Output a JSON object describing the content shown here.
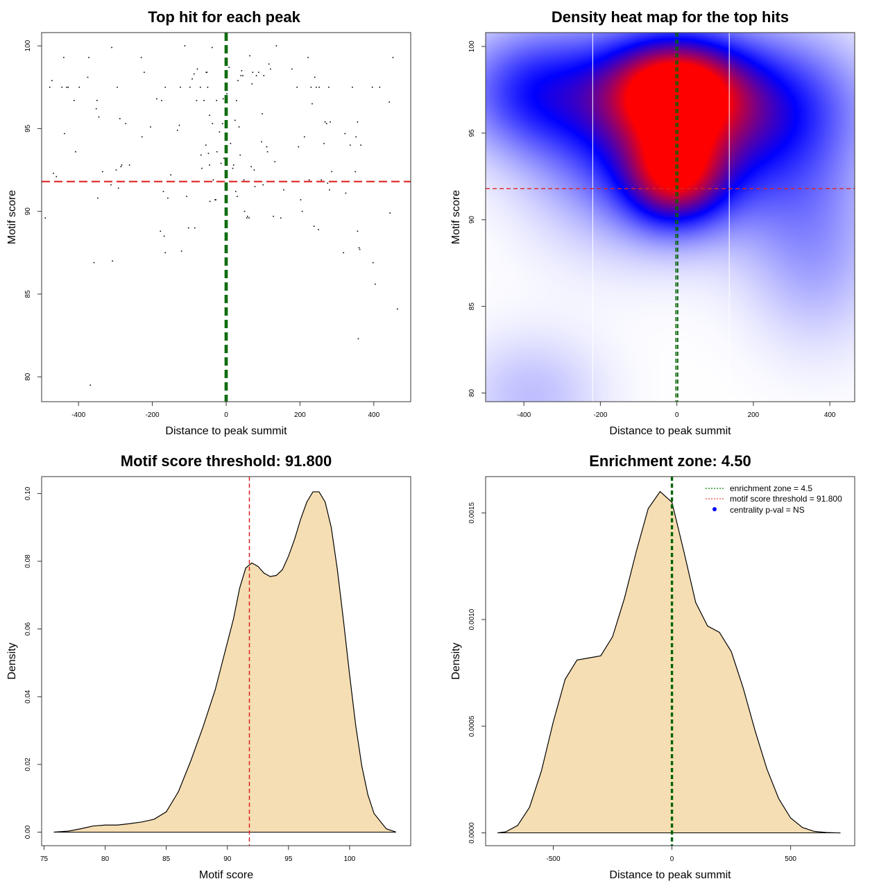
{
  "chart_data": [
    {
      "id": "scatter",
      "type": "scatter",
      "title": "Top hit for each peak",
      "xlabel": "Distance to peak summit",
      "ylabel": "Motif score",
      "xlim": [
        -500,
        500
      ],
      "ylim": [
        78.5,
        100.8
      ],
      "xticks": [
        -400,
        -200,
        0,
        200,
        400
      ],
      "yticks": [
        80,
        85,
        90,
        95,
        100
      ],
      "hline": {
        "y": 91.8,
        "color": "#dd2222"
      },
      "vlines": {
        "x": [
          -2.25,
          2.25
        ],
        "color": "#006400"
      },
      "points": [
        [
          -490,
          89.6
        ],
        [
          -478,
          97.5
        ],
        [
          -472,
          97.9
        ],
        [
          -468,
          92.3
        ],
        [
          -460,
          92.1
        ],
        [
          -445,
          97.5
        ],
        [
          -440,
          99.3
        ],
        [
          -438,
          94.7
        ],
        [
          -432,
          97.5
        ],
        [
          -428,
          97.5
        ],
        [
          -412,
          96.7
        ],
        [
          -408,
          93.6
        ],
        [
          -398,
          97.5
        ],
        [
          -375,
          98.1
        ],
        [
          -372,
          99.3
        ],
        [
          -358,
          86.9
        ],
        [
          -352,
          96.2
        ],
        [
          -350,
          96.7
        ],
        [
          -348,
          90.8
        ],
        [
          -345,
          95.7
        ],
        [
          -335,
          92.4
        ],
        [
          -312,
          91.6
        ],
        [
          -310,
          99.9
        ],
        [
          -308,
          87.0
        ],
        [
          -298,
          92.5
        ],
        [
          -295,
          97.5
        ],
        [
          -292,
          91.4
        ],
        [
          -288,
          95.6
        ],
        [
          -285,
          92.7
        ],
        [
          -283,
          92.8
        ],
        [
          -272,
          95.3
        ],
        [
          -262,
          92.8
        ],
        [
          -230,
          99.3
        ],
        [
          -228,
          94.5
        ],
        [
          -222,
          98.4
        ],
        [
          -205,
          95.1
        ],
        [
          -188,
          96.8
        ],
        [
          -178,
          88.8
        ],
        [
          -175,
          96.7
        ],
        [
          -170,
          91.2
        ],
        [
          -168,
          88.5
        ],
        [
          -165,
          87.5
        ],
        [
          -165,
          97.5
        ],
        [
          -158,
          90.8
        ],
        [
          -150,
          92.2
        ],
        [
          -132,
          94.9
        ],
        [
          -127,
          95.2
        ],
        [
          -124,
          97.5
        ],
        [
          -121,
          87.6
        ],
        [
          -112,
          100.0
        ],
        [
          -107,
          90.9
        ],
        [
          -102,
          89.0
        ],
        [
          -98,
          97.5
        ],
        [
          -92,
          98.0
        ],
        [
          -87,
          98.3
        ],
        [
          -85,
          89.0
        ],
        [
          -80,
          96.7
        ],
        [
          -78,
          98.6
        ],
        [
          -70,
          97.5
        ],
        [
          -68,
          93.4
        ],
        [
          -66,
          92.6
        ],
        [
          -60,
          96.7
        ],
        [
          -55,
          94.0
        ],
        [
          -54,
          98.4
        ],
        [
          -52,
          98.4
        ],
        [
          -50,
          97.5
        ],
        [
          -48,
          93.5
        ],
        [
          -45,
          92.8
        ],
        [
          -45,
          95.8
        ],
        [
          -44,
          90.6
        ],
        [
          -38,
          99.9
        ],
        [
          -37,
          95.3
        ],
        [
          -35,
          91.9
        ],
        [
          -30,
          90.7
        ],
        [
          -28,
          90.7
        ],
        [
          -26,
          96.7
        ],
        [
          -25,
          93.6
        ],
        [
          -22,
          91.8
        ],
        [
          -18,
          94.8
        ],
        [
          -14,
          92.9
        ],
        [
          -10,
          95.3
        ],
        [
          -8,
          96.8
        ],
        [
          -6,
          93.2
        ],
        [
          0,
          99.0
        ],
        [
          2,
          97.1
        ],
        [
          8,
          98.7
        ],
        [
          12,
          94.1
        ],
        [
          18,
          92.6
        ],
        [
          20,
          92.8
        ],
        [
          24,
          95.5
        ],
        [
          26,
          91.2
        ],
        [
          28,
          96.7
        ],
        [
          30,
          90.9
        ],
        [
          32,
          97.9
        ],
        [
          35,
          95.1
        ],
        [
          38,
          93.4
        ],
        [
          40,
          98.2
        ],
        [
          42,
          98.5
        ],
        [
          45,
          98.2
        ],
        [
          48,
          91.9
        ],
        [
          50,
          90.0
        ],
        [
          52,
          91.8
        ],
        [
          56,
          89.6
        ],
        [
          58,
          89.7
        ],
        [
          60,
          91.8
        ],
        [
          62,
          89.6
        ],
        [
          64,
          99.4
        ],
        [
          68,
          92.7
        ],
        [
          70,
          97.7
        ],
        [
          72,
          98.4
        ],
        [
          76,
          92.5
        ],
        [
          78,
          91.5
        ],
        [
          82,
          98.2
        ],
        [
          88,
          98.4
        ],
        [
          92,
          91.8
        ],
        [
          96,
          94.2
        ],
        [
          98,
          95.9
        ],
        [
          100,
          91.6
        ],
        [
          102,
          98.2
        ],
        [
          110,
          93.9
        ],
        [
          112,
          93.6
        ],
        [
          116,
          98.9
        ],
        [
          120,
          98.6
        ],
        [
          128,
          89.7
        ],
        [
          132,
          93.0
        ],
        [
          136,
          100.0
        ],
        [
          148,
          89.6
        ],
        [
          156,
          91.3
        ],
        [
          178,
          98.6
        ],
        [
          192,
          97.5
        ],
        [
          196,
          93.9
        ],
        [
          202,
          90.7
        ],
        [
          206,
          90.0
        ],
        [
          212,
          94.5
        ],
        [
          222,
          99.3
        ],
        [
          225,
          91.9
        ],
        [
          230,
          97.5
        ],
        [
          233,
          96.5
        ],
        [
          238,
          89.1
        ],
        [
          240,
          98.1
        ],
        [
          244,
          97.5
        ],
        [
          250,
          88.9
        ],
        [
          252,
          97.5
        ],
        [
          258,
          91.9
        ],
        [
          265,
          94.1
        ],
        [
          268,
          95.4
        ],
        [
          272,
          95.3
        ],
        [
          275,
          91.7
        ],
        [
          278,
          97.5
        ],
        [
          280,
          91.3
        ],
        [
          282,
          95.4
        ],
        [
          286,
          92.4
        ],
        [
          318,
          87.5
        ],
        [
          322,
          94.7
        ],
        [
          324,
          91.1
        ],
        [
          336,
          94.0
        ],
        [
          342,
          97.5
        ],
        [
          350,
          92.4
        ],
        [
          352,
          94.5
        ],
        [
          356,
          95.4
        ],
        [
          356,
          88.8
        ],
        [
          358,
          82.3
        ],
        [
          360,
          87.8
        ],
        [
          362,
          87.7
        ],
        [
          365,
          94.0
        ],
        [
          396,
          97.5
        ],
        [
          398,
          86.9
        ],
        [
          404,
          85.6
        ],
        [
          416,
          97.5
        ],
        [
          442,
          96.6
        ],
        [
          444,
          89.9
        ],
        [
          452,
          99.3
        ],
        [
          464,
          84.1
        ],
        [
          -368,
          79.5
        ]
      ]
    },
    {
      "id": "heatmap",
      "type": "heatmap",
      "title": "Density heat map for the top hits",
      "xlabel": "Distance to peak summit",
      "ylabel": "Motif score",
      "xlim": [
        -500,
        465
      ],
      "ylim": [
        79.5,
        100.8
      ],
      "xticks": [
        -400,
        -200,
        0,
        200,
        400
      ],
      "yticks": [
        80,
        85,
        90,
        95,
        100
      ],
      "hline": {
        "y": 91.8,
        "color": "#dd2222"
      },
      "vlines": {
        "x": [
          -2.25,
          2.25
        ],
        "color": "#006400"
      },
      "zone_lines": {
        "x": [
          -220,
          137
        ],
        "color": "#ffffff"
      },
      "colors": [
        "#ffffff",
        "#0000ff",
        "#ff0000"
      ],
      "kernels": [
        {
          "x": -10,
          "y": 97.7,
          "sx": 120,
          "sy": 2.0,
          "w": 1.4
        },
        {
          "x": -5,
          "y": 92.5,
          "sx": 90,
          "sy": 2.0,
          "w": 1.2
        },
        {
          "x": 60,
          "y": 95.0,
          "sx": 170,
          "sy": 3.5,
          "w": 0.75
        },
        {
          "x": -380,
          "y": 97.5,
          "sx": 140,
          "sy": 2.5,
          "w": 0.75
        },
        {
          "x": -170,
          "y": 95.0,
          "sx": 160,
          "sy": 4.0,
          "w": 0.55
        },
        {
          "x": 320,
          "y": 94.0,
          "sx": 140,
          "sy": 4.5,
          "w": 0.4
        },
        {
          "x": 200,
          "y": 97.0,
          "sx": 200,
          "sy": 2.5,
          "w": 0.45
        },
        {
          "x": -380,
          "y": 79.8,
          "sx": 130,
          "sy": 2.5,
          "w": 0.25
        },
        {
          "x": 370,
          "y": 87.5,
          "sx": 120,
          "sy": 3.5,
          "w": 0.25
        }
      ]
    },
    {
      "id": "density-score",
      "type": "area",
      "title": "Motif score threshold: 91.800",
      "xlabel": "Motif score",
      "ylabel": "Density",
      "xlim": [
        74.8,
        105
      ],
      "ylim": [
        -0.004,
        0.105
      ],
      "xticks": [
        75,
        80,
        85,
        90,
        95,
        100
      ],
      "yticks": [
        0.0,
        0.02,
        0.04,
        0.06,
        0.08,
        0.1
      ],
      "ytick_labels": [
        "0.00",
        "0.02",
        "0.04",
        "0.06",
        "0.08",
        "0.10"
      ],
      "vline": {
        "x": 91.8,
        "color": "#dd2222"
      },
      "fill": "#f5deb3",
      "x": [
        75.8,
        77,
        78,
        79,
        80,
        81,
        82,
        83,
        84,
        85,
        86,
        87,
        88,
        89,
        90,
        90.5,
        91,
        91.5,
        92,
        92.5,
        93,
        93.5,
        94,
        94.5,
        95,
        95.5,
        96,
        96.5,
        97,
        97.5,
        98,
        98.5,
        99,
        99.5,
        100,
        100.5,
        101,
        101.5,
        102,
        103,
        103.8
      ],
      "y": [
        0.0,
        0.0003,
        0.001,
        0.0018,
        0.0021,
        0.0021,
        0.0025,
        0.003,
        0.0038,
        0.006,
        0.012,
        0.021,
        0.031,
        0.042,
        0.056,
        0.063,
        0.072,
        0.078,
        0.0795,
        0.0785,
        0.0765,
        0.0755,
        0.0758,
        0.0775,
        0.0815,
        0.0865,
        0.0925,
        0.0975,
        0.1005,
        0.1005,
        0.0975,
        0.09,
        0.0775,
        0.0625,
        0.0465,
        0.0315,
        0.0195,
        0.011,
        0.0055,
        0.001,
        0.0
      ]
    },
    {
      "id": "density-distance",
      "type": "area",
      "title": "Enrichment zone: 4.50",
      "xlabel": "Distance to peak summit",
      "ylabel": "Density",
      "xlim": [
        -785,
        770
      ],
      "ylim": [
        -6e-05,
        0.00167
      ],
      "xticks": [
        -500,
        0,
        500
      ],
      "yticks": [
        0,
        0.0005,
        0.001,
        0.0015
      ],
      "ytick_labels": [
        "0.0000",
        "0.0005",
        "0.0010",
        "0.0015"
      ],
      "vlines": {
        "x": [
          -2.25,
          2.25
        ],
        "color": "#006400"
      },
      "fill": "#f5deb3",
      "x": [
        -735,
        -700,
        -650,
        -600,
        -550,
        -500,
        -450,
        -400,
        -350,
        -300,
        -250,
        -200,
        -150,
        -100,
        -50,
        0,
        50,
        100,
        150,
        200,
        250,
        300,
        350,
        400,
        450,
        500,
        550,
        600,
        650,
        700,
        710
      ],
      "y": [
        0.0,
        5e-06,
        3.5e-05,
        0.00012,
        0.00029,
        0.00052,
        0.00072,
        0.00081,
        0.00082,
        0.00083,
        0.00092,
        0.0011,
        0.00132,
        0.00152,
        0.0016,
        0.00155,
        0.00132,
        0.00108,
        0.00097,
        0.00094,
        0.00085,
        0.00068,
        0.00048,
        0.0003,
        0.00016,
        7e-05,
        2.5e-05,
        7e-06,
        2e-06,
        0.0,
        0.0
      ],
      "legend": {
        "position": "top-right",
        "items": [
          {
            "label": "enrichment zone = 4.5",
            "style": "dotted-line",
            "color": "#008000"
          },
          {
            "label": "motif score threshold = 91.800",
            "style": "dotted-line",
            "color": "#ee4444"
          },
          {
            "label": "centrality p-val = NS",
            "style": "point",
            "color": "#0000ff"
          }
        ]
      }
    }
  ]
}
